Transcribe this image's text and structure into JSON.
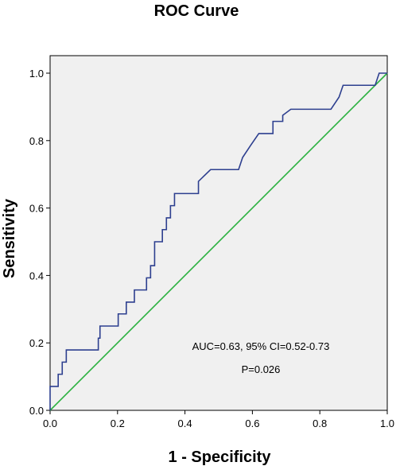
{
  "chart_data": {
    "type": "line",
    "title": "ROC Curve",
    "xlabel": "1 - Specificity",
    "ylabel": "Sensitivity",
    "xlim": [
      0,
      1
    ],
    "ylim": [
      0,
      1
    ],
    "grid": false,
    "background_color": "#f0f0f0",
    "x_ticks": [
      "0.0",
      "0.2",
      "0.4",
      "0.6",
      "0.8",
      "1.0"
    ],
    "y_ticks": [
      "0.0",
      "0.2",
      "0.4",
      "0.6",
      "0.8",
      "1.0"
    ],
    "series": [
      {
        "color": "#2d3f8f",
        "points": [
          [
            0,
            0
          ],
          [
            0,
            0.071
          ],
          [
            0.024,
            0.071
          ],
          [
            0.024,
            0.107
          ],
          [
            0.036,
            0.107
          ],
          [
            0.036,
            0.143
          ],
          [
            0.048,
            0.143
          ],
          [
            0.048,
            0.179
          ],
          [
            0.143,
            0.179
          ],
          [
            0.143,
            0.214
          ],
          [
            0.148,
            0.214
          ],
          [
            0.148,
            0.25
          ],
          [
            0.202,
            0.25
          ],
          [
            0.202,
            0.286
          ],
          [
            0.226,
            0.286
          ],
          [
            0.226,
            0.321
          ],
          [
            0.25,
            0.321
          ],
          [
            0.25,
            0.357
          ],
          [
            0.286,
            0.357
          ],
          [
            0.286,
            0.393
          ],
          [
            0.298,
            0.393
          ],
          [
            0.298,
            0.429
          ],
          [
            0.31,
            0.429
          ],
          [
            0.31,
            0.5
          ],
          [
            0.333,
            0.5
          ],
          [
            0.333,
            0.536
          ],
          [
            0.345,
            0.536
          ],
          [
            0.345,
            0.571
          ],
          [
            0.357,
            0.571
          ],
          [
            0.357,
            0.607
          ],
          [
            0.369,
            0.607
          ],
          [
            0.369,
            0.643
          ],
          [
            0.44,
            0.643
          ],
          [
            0.44,
            0.679
          ],
          [
            0.476,
            0.714
          ],
          [
            0.559,
            0.714
          ],
          [
            0.571,
            0.75
          ],
          [
            0.595,
            0.786
          ],
          [
            0.619,
            0.821
          ],
          [
            0.661,
            0.821
          ],
          [
            0.661,
            0.857
          ],
          [
            0.69,
            0.857
          ],
          [
            0.69,
            0.875
          ],
          [
            0.714,
            0.893
          ],
          [
            0.833,
            0.893
          ],
          [
            0.857,
            0.929
          ],
          [
            0.869,
            0.964
          ],
          [
            0.964,
            0.964
          ],
          [
            0.976,
            1.0
          ],
          [
            1.0,
            1.0
          ]
        ]
      },
      {
        "color": "#2ab13f",
        "points": [
          [
            0,
            0
          ],
          [
            1,
            1
          ]
        ]
      }
    ],
    "annotations": [
      "AUC=0.63, 95% CI=0.52-0.73",
      "P=0.026"
    ]
  }
}
